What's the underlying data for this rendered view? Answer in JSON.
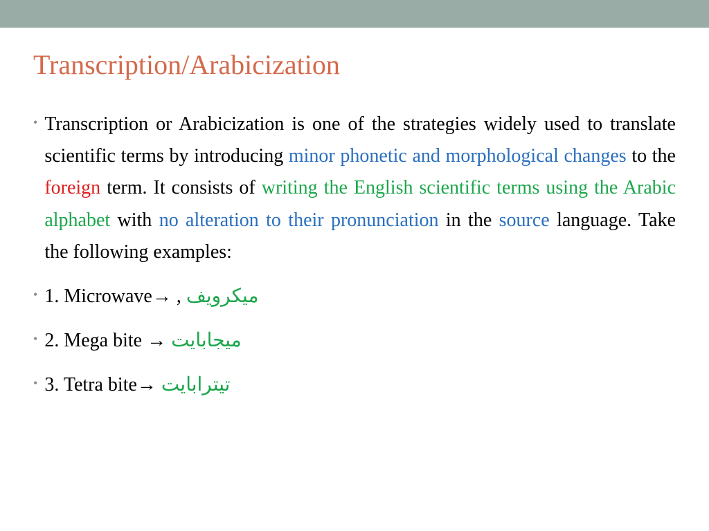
{
  "colors": {
    "top_bar": "#9aaca6",
    "title": "#d46a4c",
    "text_black": "#000000",
    "text_blue": "#2a6fbf",
    "text_red": "#e01e1e",
    "text_green": "#1ca64c",
    "bullet": "#8a8a8a"
  },
  "title": "Transcription/Arabicization",
  "paragraph_segments": [
    {
      "text": "Transcription or Arabicization is one of the strategies widely used to translate scientific terms by introducing ",
      "color": "text_black"
    },
    {
      "text": "minor phonetic and morphological changes",
      "color": "text_blue"
    },
    {
      "text": " to the ",
      "color": "text_black"
    },
    {
      "text": "foreign",
      "color": "text_red"
    },
    {
      "text": " term. It consists of ",
      "color": "text_black"
    },
    {
      "text": "writing the English scientific terms using the Arabic alphabet",
      "color": "text_green"
    },
    {
      "text": " with ",
      "color": "text_black"
    },
    {
      "text": "no alteration to their pronunciation",
      "color": "text_blue"
    },
    {
      "text": " in the ",
      "color": "text_black"
    },
    {
      "text": "source",
      "color": "text_blue"
    },
    {
      "text": " language. Take the following examples:",
      "color": "text_black"
    }
  ],
  "examples": [
    {
      "num": "1.",
      "english": "Microwave",
      "arrow": "→",
      "sep": " , ",
      "arabic": "ميكرويف"
    },
    {
      "num": "2.",
      "english": "Mega bite ",
      "arrow": "→",
      "sep": " ",
      "arabic": "ميجابايت"
    },
    {
      "num": "3.",
      "english": "Tetra bite",
      "arrow": "→",
      "sep": " ",
      "arabic": "تيترابايت"
    }
  ]
}
